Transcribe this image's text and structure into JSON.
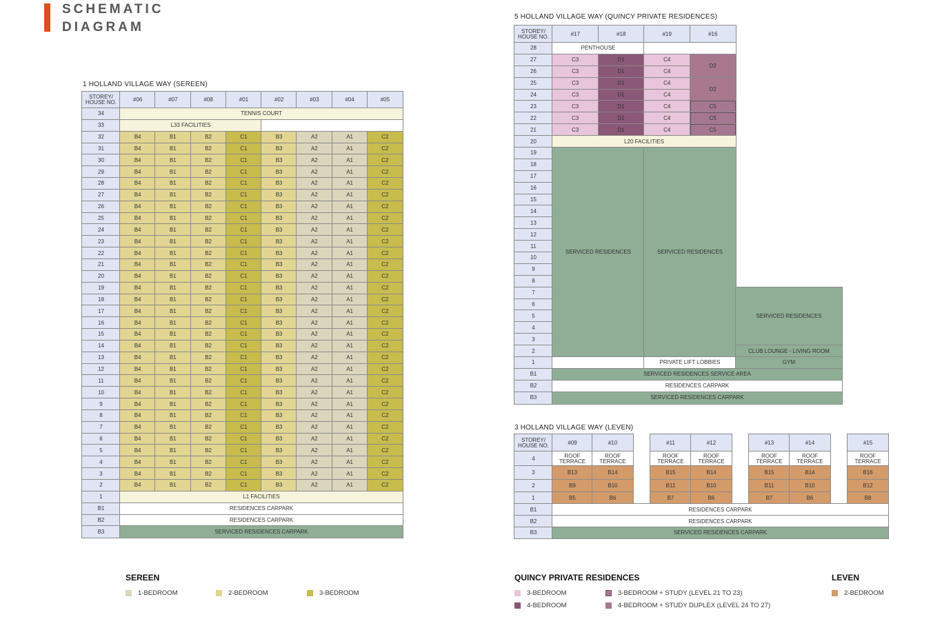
{
  "title": {
    "line1": "SCHEMATIC",
    "line2": "DIAGRAM"
  },
  "colors": {
    "accent": "#e04e1b",
    "one_bed": "#dbd5bc",
    "two_bed": "#e1d591",
    "three_bed": "#c8bc4d",
    "quincy_3bed": "#e8c5da",
    "quincy_4bed": "#8b5877",
    "leven_2bed": "#d49b6a",
    "serviced": "#8fae96"
  },
  "sereen": {
    "caption": "1 HOLLAND VILLAGE WAY (SEREEN)",
    "corner": "STOREY/ HOUSE NO.",
    "columns": [
      "#06",
      "#07",
      "#08",
      "#01",
      "#02",
      "#03",
      "#04",
      "#05"
    ],
    "unit_types": [
      "B4",
      "B1",
      "B2",
      "C1",
      "B3",
      "A2",
      "A1",
      "C2"
    ],
    "unit_floors": [
      "32",
      "31",
      "30",
      "29",
      "28",
      "27",
      "26",
      "25",
      "24",
      "23",
      "22",
      "21",
      "20",
      "19",
      "18",
      "17",
      "16",
      "15",
      "14",
      "13",
      "12",
      "11",
      "10",
      "9",
      "8",
      "7",
      "6",
      "5",
      "4",
      "3",
      "2"
    ],
    "special_rows": [
      {
        "floor": "34",
        "cells": [
          {
            "text": "TENNIS COURT",
            "span": 8,
            "type": "cream"
          }
        ]
      },
      {
        "floor": "33",
        "cells": [
          {
            "text": "L33 FACILITIES",
            "span": 4,
            "type": "cream"
          },
          {
            "text": "",
            "span": 4,
            "type": "white"
          }
        ]
      },
      {
        "floor": "1",
        "cells": [
          {
            "text": "L1 FACILITIES",
            "span": 8,
            "type": "cream"
          }
        ]
      },
      {
        "floor": "B1",
        "cells": [
          {
            "text": "RESIDENCES CARPARK",
            "span": 8,
            "type": "white"
          }
        ]
      },
      {
        "floor": "B2",
        "cells": [
          {
            "text": "RESIDENCES CARPARK",
            "span": 8,
            "type": "white"
          }
        ]
      },
      {
        "floor": "B3",
        "cells": [
          {
            "text": "SERVICED RESIDENCES CARPARK",
            "span": 8,
            "type": "green"
          }
        ]
      }
    ]
  },
  "quincy": {
    "caption": "5 HOLLAND VILLAGE WAY (QUINCY PRIVATE RESIDENCES)",
    "corner": "STOREY/ HOUSE NO.",
    "columns": [
      "#17",
      "#18",
      "#19",
      "#16"
    ],
    "floors": [
      "28",
      "27",
      "26",
      "25",
      "24",
      "23",
      "22",
      "21",
      "20",
      "19",
      "18",
      "17",
      "16",
      "15",
      "14",
      "13",
      "12",
      "11",
      "10",
      "9",
      "8",
      "7",
      "6",
      "5",
      "4",
      "3",
      "2",
      "1",
      "B1",
      "B2",
      "B3"
    ],
    "penthouse": "PENTHOUSE",
    "c3": "C3",
    "d1": "D1",
    "c4": "C4",
    "d2": "D2",
    "c5": "C5",
    "l20": "L20 FACILITIES",
    "serviced": "SERVICED RESIDENCES",
    "club_lounge": "CLUB LOUNGE - LIVING ROOM",
    "lift_lobbies": "PRIVATE LIFT LOBBIES",
    "gym": "GYM",
    "service_area": "SERVICED RESIDENCES SERVICE AREA",
    "carpark": "RESIDENCES CARPARK",
    "sr_carpark": "SERVICED RESIDENCES CARPARK"
  },
  "leven": {
    "caption": "3 HOLLAND VILLAGE WAY (LEVEN)",
    "corner": "STOREY/ HOUSE NO.",
    "columns": [
      "#09",
      "#10",
      "#11",
      "#12",
      "#13",
      "#14",
      "#15"
    ],
    "roof": "ROOF TERRACE",
    "floors": [
      {
        "floor": "4"
      },
      {
        "floor": "3",
        "units": [
          "B13",
          "B14",
          "B15",
          "B14",
          "B15",
          "B14",
          "B16"
        ]
      },
      {
        "floor": "2",
        "units": [
          "B9",
          "B10",
          "B11",
          "B10",
          "B11",
          "B10",
          "B12"
        ]
      },
      {
        "floor": "1",
        "units": [
          "B5",
          "B6",
          "B7",
          "B6",
          "B7",
          "B6",
          "B8"
        ]
      }
    ],
    "basement": [
      {
        "floor": "B1",
        "text": "RESIDENCES CARPARK",
        "type": "white"
      },
      {
        "floor": "B2",
        "text": "RESIDENCES CARPARK",
        "type": "white"
      },
      {
        "floor": "B3",
        "text": "SERVICED RESIDENCES CARPARK",
        "type": "green"
      }
    ]
  },
  "legend": {
    "sereen": {
      "title": "SEREEN",
      "items": [
        "1-BEDROOM",
        "2-BEDROOM",
        "3-BEDROOM"
      ]
    },
    "quincy": {
      "title": "QUINCY PRIVATE RESIDENCES",
      "items": [
        "3-BEDROOM",
        "4-BEDROOM",
        "3-BEDROOM + STUDY (LEVEL 21 TO 23)",
        "4-BEDROOM + STUDY DUPLEX (LEVEL 24 TO 27)"
      ]
    },
    "leven": {
      "title": "LEVEN",
      "items": [
        "2-BEDROOM"
      ]
    }
  }
}
